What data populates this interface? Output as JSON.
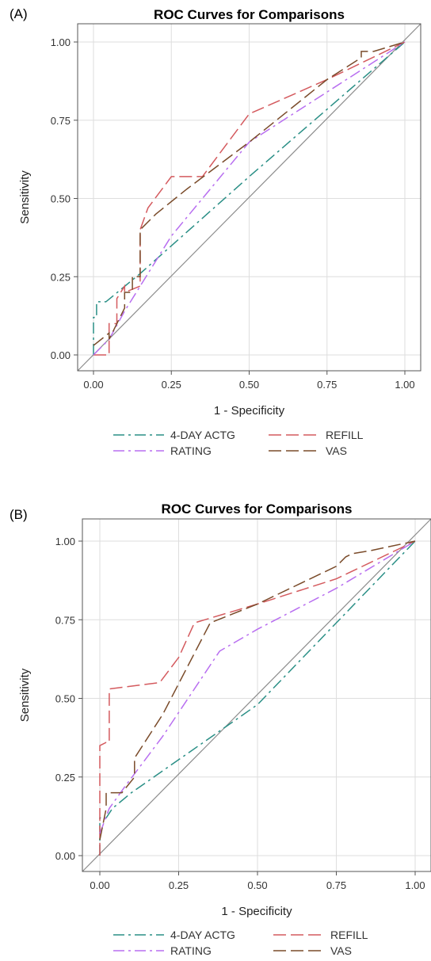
{
  "colors": {
    "4-DAY ACTG": "#2a8f86",
    "REFILL": "#d45a5e",
    "RATING": "#b86ef0",
    "VAS": "#7a4b2a",
    "diagonal": "#8c8c8c",
    "grid": "#dedede"
  },
  "chart_data": [
    {
      "panel_label": "(A)",
      "type": "line",
      "title": "ROC Curves for Comparisons",
      "xlabel": "1 - Specificity",
      "ylabel": "Sensitivity",
      "xlim": [
        0,
        1
      ],
      "ylim": [
        0,
        1
      ],
      "ticks": [
        "0.00",
        "0.25",
        "0.50",
        "0.75",
        "1.00"
      ],
      "grid": true,
      "reference_line": "diagonal",
      "legend": [
        "4-DAY ACTG",
        "REFILL",
        "RATING",
        "VAS"
      ],
      "legend_position": "bottom",
      "series": [
        {
          "name": "4-DAY ACTG",
          "dash": "dashdot",
          "x": [
            0,
            0,
            0.01,
            0.01,
            0.04,
            0.15,
            0.5,
            1.0
          ],
          "y": [
            0,
            0.12,
            0.12,
            0.17,
            0.17,
            0.26,
            0.57,
            1.0
          ]
        },
        {
          "name": "REFILL",
          "dash": "longdash",
          "x": [
            0,
            0.05,
            0.05,
            0.075,
            0.075,
            0.1,
            0.1,
            0.15,
            0.15,
            0.175,
            0.25,
            0.35,
            0.5,
            0.75,
            1.0
          ],
          "y": [
            0,
            0,
            0.1,
            0.1,
            0.18,
            0.22,
            0.2,
            0.22,
            0.4,
            0.47,
            0.57,
            0.57,
            0.77,
            0.88,
            1.0
          ]
        },
        {
          "name": "RATING",
          "dash": "dashdot",
          "x": [
            0,
            0.05,
            0.1,
            0.25,
            0.5,
            1.0
          ],
          "y": [
            0,
            0.05,
            0.14,
            0.38,
            0.68,
            1.0
          ]
        },
        {
          "name": "VAS",
          "dash": "longdash",
          "x": [
            0,
            0.05,
            0.05,
            0.1,
            0.1,
            0.125,
            0.125,
            0.15,
            0.15,
            0.2,
            0.3,
            0.5,
            0.75,
            0.86,
            0.86,
            0.9,
            1.0
          ],
          "y": [
            0.03,
            0.07,
            0.05,
            0.15,
            0.2,
            0.2,
            0.25,
            0.25,
            0.4,
            0.45,
            0.53,
            0.68,
            0.88,
            0.95,
            0.97,
            0.97,
            1.0
          ]
        }
      ]
    },
    {
      "panel_label": "(B)",
      "type": "line",
      "title": "ROC Curves for Comparisons",
      "xlabel": "1 - Specificity",
      "ylabel": "Sensitivity",
      "xlim": [
        0,
        1
      ],
      "ylim": [
        0,
        1
      ],
      "ticks": [
        "0.00",
        "0.25",
        "0.50",
        "0.75",
        "1.00"
      ],
      "grid": true,
      "reference_line": "diagonal",
      "legend": [
        "4-DAY ACTG",
        "REFILL",
        "RATING",
        "VAS"
      ],
      "legend_position": "bottom",
      "series": [
        {
          "name": "4-DAY ACTG",
          "dash": "dashdot",
          "x": [
            0,
            0,
            0.02,
            0.04,
            0.1,
            0.5,
            1.0
          ],
          "y": [
            0,
            0.12,
            0.12,
            0.15,
            0.2,
            0.48,
            1.0
          ]
        },
        {
          "name": "REFILL",
          "dash": "longdash",
          "x": [
            0,
            0,
            0.02,
            0.03,
            0.03,
            0.19,
            0.25,
            0.3,
            0.5,
            0.75,
            1.0
          ],
          "y": [
            0,
            0.35,
            0.36,
            0.36,
            0.53,
            0.55,
            0.63,
            0.74,
            0.8,
            0.88,
            1.0
          ]
        },
        {
          "name": "RATING",
          "dash": "dashdot",
          "x": [
            0,
            0.03,
            0.08,
            0.2,
            0.38,
            0.5,
            0.75,
            1.0
          ],
          "y": [
            0.07,
            0.15,
            0.22,
            0.38,
            0.65,
            0.72,
            0.85,
            1.0
          ]
        },
        {
          "name": "VAS",
          "dash": "longdash",
          "x": [
            0,
            0.02,
            0.02,
            0.05,
            0.07,
            0.11,
            0.11,
            0.2,
            0.35,
            0.5,
            0.75,
            0.78,
            0.8,
            0.86,
            1.0
          ],
          "y": [
            0.05,
            0.15,
            0.2,
            0.2,
            0.2,
            0.25,
            0.31,
            0.45,
            0.74,
            0.8,
            0.92,
            0.95,
            0.96,
            0.97,
            1.0
          ]
        }
      ]
    }
  ]
}
